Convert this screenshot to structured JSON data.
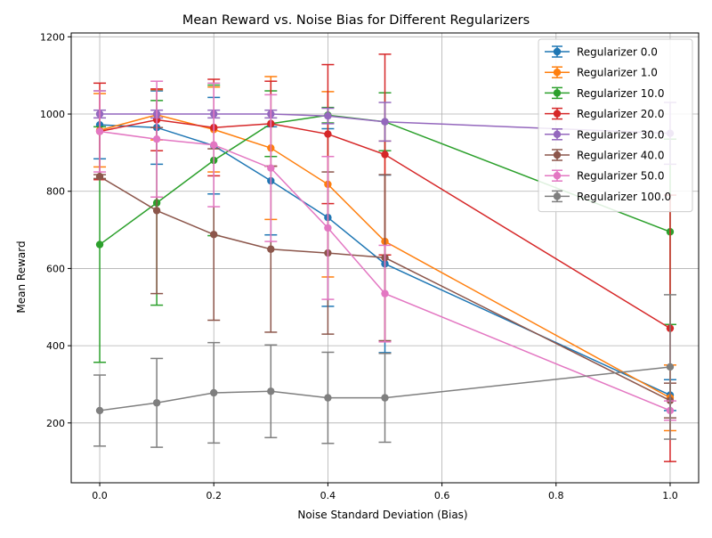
{
  "chart_data": {
    "type": "line",
    "title": "Mean Reward vs. Noise Bias for Different Regularizers",
    "xlabel": "Noise Standard Deviation (Bias)",
    "ylabel": "Mean Reward",
    "xlim": [
      -0.05,
      1.05
    ],
    "ylim": [
      45,
      1210
    ],
    "xticks": [
      0.0,
      0.2,
      0.4,
      0.6,
      0.8,
      1.0
    ],
    "xtick_labels": [
      "0.0",
      "0.2",
      "0.4",
      "0.6",
      "0.8",
      "1.0"
    ],
    "yticks": [
      200,
      400,
      600,
      800,
      1000,
      1200
    ],
    "ytick_labels": [
      "200",
      "400",
      "600",
      "800",
      "1000",
      "1200"
    ],
    "grid": true,
    "legend_position": "top-right",
    "marker": "circle",
    "error_bars": true,
    "x": [
      0.0,
      0.1,
      0.2,
      0.3,
      0.4,
      0.5,
      1.0
    ],
    "series": [
      {
        "name": "Regularizer 0.0",
        "color": "#1f77b4",
        "values": [
          972,
          965,
          918,
          827,
          732,
          612,
          272
        ],
        "errors": [
          88,
          95,
          125,
          140,
          230,
          230,
          40
        ]
      },
      {
        "name": "Regularizer 1.0",
        "color": "#ff7f0e",
        "values": [
          958,
          998,
          960,
          912,
          818,
          670,
          265
        ],
        "errors": [
          95,
          65,
          110,
          185,
          240,
          260,
          85
        ]
      },
      {
        "name": "Regularizer 10.0",
        "color": "#2ca02c",
        "values": [
          662,
          770,
          880,
          975,
          997,
          980,
          695
        ],
        "errors": [
          305,
          265,
          195,
          85,
          20,
          75,
          240
        ]
      },
      {
        "name": "Regularizer 20.0",
        "color": "#d62728",
        "values": [
          955,
          985,
          965,
          975,
          948,
          895,
          445
        ],
        "errors": [
          125,
          80,
          125,
          110,
          180,
          260,
          345
        ]
      },
      {
        "name": "Regularizer 30.0",
        "color": "#9467bd",
        "values": [
          1000,
          1000,
          1000,
          1000,
          995,
          980,
          950
        ],
        "errors": [
          10,
          10,
          10,
          10,
          20,
          50,
          80
        ]
      },
      {
        "name": "Regularizer 40.0",
        "color": "#8c564b",
        "values": [
          838,
          750,
          688,
          650,
          640,
          628,
          258
        ],
        "errors": [
          5,
          215,
          222,
          215,
          210,
          215,
          45
        ]
      },
      {
        "name": "Regularizer 50.0",
        "color": "#e377c2",
        "values": [
          955,
          935,
          920,
          860,
          705,
          535,
          232
        ],
        "errors": [
          105,
          150,
          160,
          190,
          185,
          125,
          25
        ]
      },
      {
        "name": "Regularizer 100.0",
        "color": "#7f7f7f",
        "values": [
          232,
          252,
          278,
          282,
          265,
          265,
          345
        ],
        "errors": [
          92,
          115,
          130,
          120,
          118,
          115,
          187
        ]
      }
    ]
  }
}
